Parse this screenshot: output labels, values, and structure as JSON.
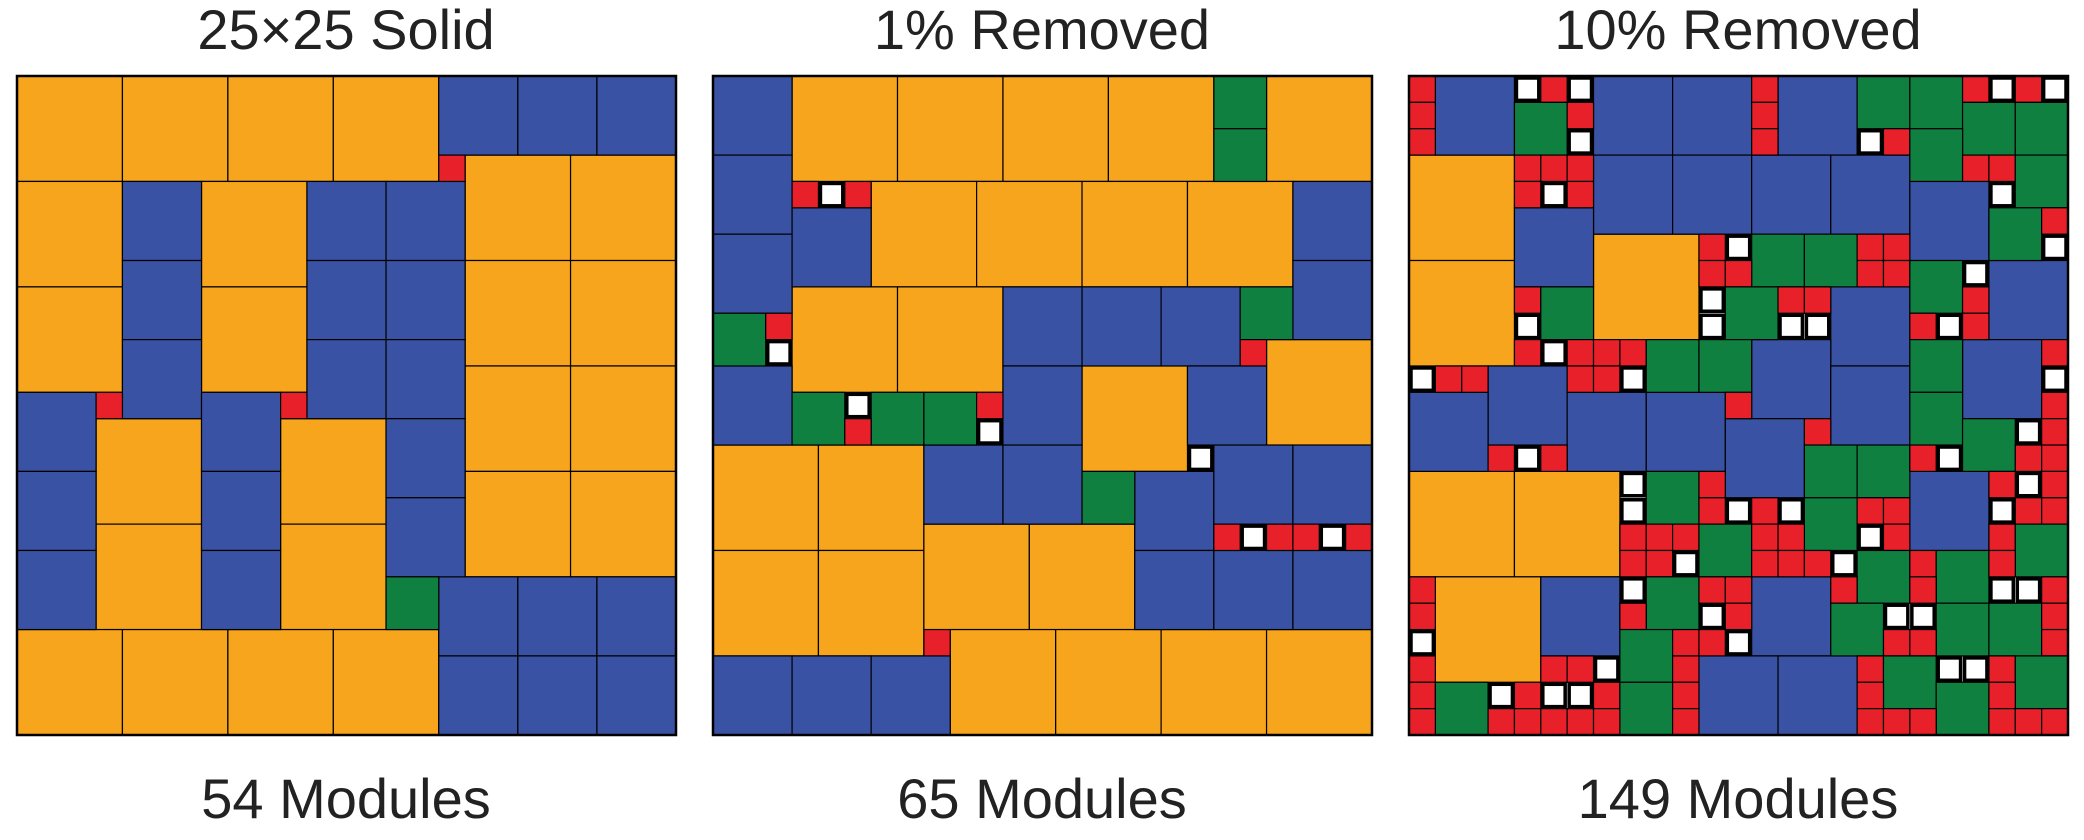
{
  "panels": [
    {
      "title": "25×25 Solid",
      "caption": "54 Modules"
    },
    {
      "title": "1% Removed",
      "caption": "65 Modules"
    },
    {
      "title": "10% Removed",
      "caption": "149 Modules"
    }
  ]
}
